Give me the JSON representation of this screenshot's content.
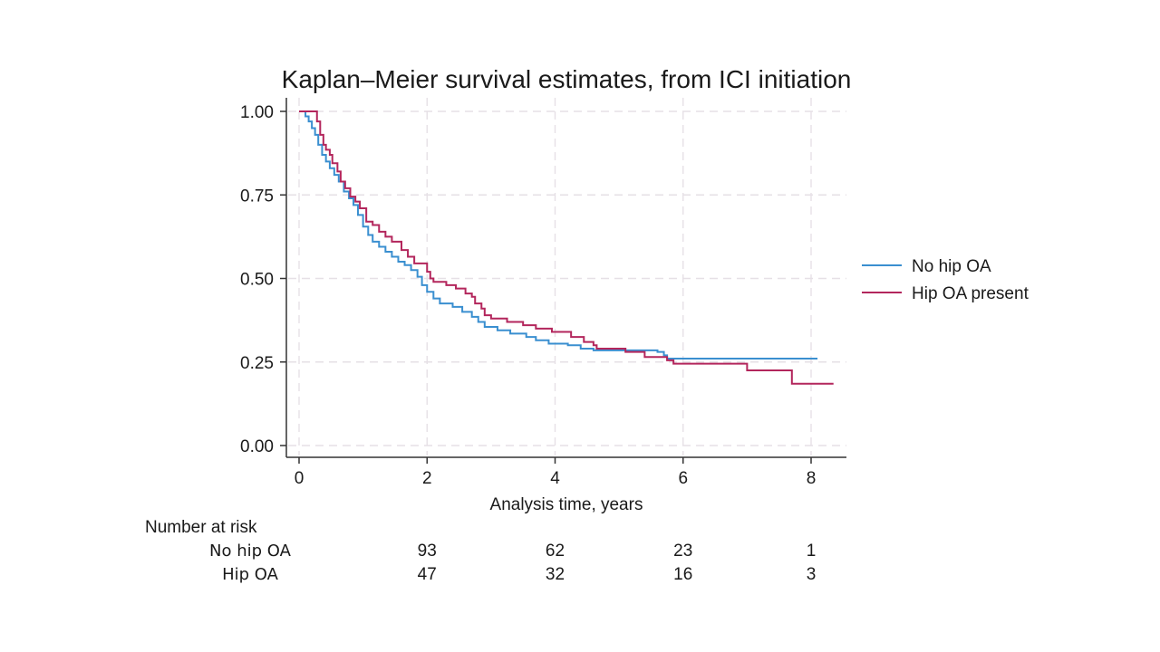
{
  "chart_data": {
    "type": "line",
    "subtype": "kaplan-meier step",
    "title": "Kaplan–Meier survival estimates, from ICI initiation",
    "xlabel": "Analysis time, years",
    "ylabel": "",
    "xlim": [
      0,
      8.5
    ],
    "ylim": [
      0,
      1
    ],
    "x_ticks": [
      0,
      2,
      4,
      6,
      8
    ],
    "x_tick_labels": [
      "0",
      "2",
      "4",
      "6",
      "8"
    ],
    "y_ticks": [
      0,
      0.25,
      0.5,
      0.75,
      1
    ],
    "y_tick_labels": [
      "0.00",
      "0.25",
      "0.50",
      "0.75",
      "1.00"
    ],
    "grid": true,
    "legend_position": "right",
    "series": [
      {
        "name": "No hip OA",
        "color": "#3a8fd0",
        "points": [
          [
            0,
            1.0
          ],
          [
            0.07,
            1.0
          ],
          [
            0.1,
            0.985
          ],
          [
            0.15,
            0.97
          ],
          [
            0.2,
            0.95
          ],
          [
            0.25,
            0.93
          ],
          [
            0.3,
            0.9
          ],
          [
            0.36,
            0.87
          ],
          [
            0.42,
            0.85
          ],
          [
            0.48,
            0.83
          ],
          [
            0.55,
            0.81
          ],
          [
            0.62,
            0.79
          ],
          [
            0.7,
            0.76
          ],
          [
            0.78,
            0.74
          ],
          [
            0.85,
            0.72
          ],
          [
            0.92,
            0.69
          ],
          [
            1.0,
            0.655
          ],
          [
            1.08,
            0.63
          ],
          [
            1.15,
            0.61
          ],
          [
            1.25,
            0.595
          ],
          [
            1.35,
            0.58
          ],
          [
            1.45,
            0.565
          ],
          [
            1.55,
            0.55
          ],
          [
            1.65,
            0.54
          ],
          [
            1.75,
            0.525
          ],
          [
            1.85,
            0.505
          ],
          [
            1.92,
            0.48
          ],
          [
            2.0,
            0.46
          ],
          [
            2.1,
            0.44
          ],
          [
            2.2,
            0.425
          ],
          [
            2.4,
            0.415
          ],
          [
            2.55,
            0.4
          ],
          [
            2.7,
            0.385
          ],
          [
            2.8,
            0.37
          ],
          [
            2.9,
            0.355
          ],
          [
            3.1,
            0.345
          ],
          [
            3.3,
            0.335
          ],
          [
            3.55,
            0.325
          ],
          [
            3.7,
            0.315
          ],
          [
            3.9,
            0.305
          ],
          [
            4.2,
            0.3
          ],
          [
            4.4,
            0.29
          ],
          [
            4.6,
            0.285
          ],
          [
            5.6,
            0.28
          ],
          [
            5.7,
            0.27
          ],
          [
            5.75,
            0.26
          ],
          [
            8.1,
            0.26
          ]
        ]
      },
      {
        "name": "Hip OA present",
        "color": "#b3265c",
        "points": [
          [
            0,
            1.0
          ],
          [
            0.26,
            1.0
          ],
          [
            0.28,
            0.97
          ],
          [
            0.33,
            0.93
          ],
          [
            0.38,
            0.9
          ],
          [
            0.42,
            0.885
          ],
          [
            0.48,
            0.87
          ],
          [
            0.52,
            0.845
          ],
          [
            0.6,
            0.82
          ],
          [
            0.65,
            0.79
          ],
          [
            0.72,
            0.77
          ],
          [
            0.8,
            0.745
          ],
          [
            0.88,
            0.73
          ],
          [
            0.95,
            0.71
          ],
          [
            1.05,
            0.67
          ],
          [
            1.15,
            0.66
          ],
          [
            1.25,
            0.64
          ],
          [
            1.35,
            0.625
          ],
          [
            1.45,
            0.61
          ],
          [
            1.6,
            0.585
          ],
          [
            1.7,
            0.565
          ],
          [
            1.8,
            0.545
          ],
          [
            2.0,
            0.52
          ],
          [
            2.05,
            0.5
          ],
          [
            2.1,
            0.49
          ],
          [
            2.3,
            0.48
          ],
          [
            2.45,
            0.47
          ],
          [
            2.6,
            0.455
          ],
          [
            2.7,
            0.445
          ],
          [
            2.75,
            0.425
          ],
          [
            2.85,
            0.41
          ],
          [
            2.9,
            0.39
          ],
          [
            3.0,
            0.38
          ],
          [
            3.25,
            0.37
          ],
          [
            3.5,
            0.36
          ],
          [
            3.7,
            0.35
          ],
          [
            3.95,
            0.34
          ],
          [
            4.25,
            0.325
          ],
          [
            4.45,
            0.31
          ],
          [
            4.6,
            0.3
          ],
          [
            4.65,
            0.29
          ],
          [
            5.1,
            0.28
          ],
          [
            5.4,
            0.265
          ],
          [
            5.75,
            0.255
          ],
          [
            5.85,
            0.245
          ],
          [
            7.0,
            0.245
          ],
          [
            7.0,
            0.225
          ],
          [
            7.7,
            0.225
          ],
          [
            7.7,
            0.185
          ],
          [
            8.35,
            0.185
          ]
        ]
      }
    ],
    "number_at_risk": {
      "title": "Number at risk",
      "times": [
        2,
        4,
        6,
        8
      ],
      "rows": [
        {
          "label": "No hip OA",
          "values": [
            "93",
            "62",
            "23",
            "1"
          ]
        },
        {
          "label": "Hip OA",
          "values": [
            "47",
            "32",
            "16",
            "3"
          ]
        }
      ]
    }
  }
}
